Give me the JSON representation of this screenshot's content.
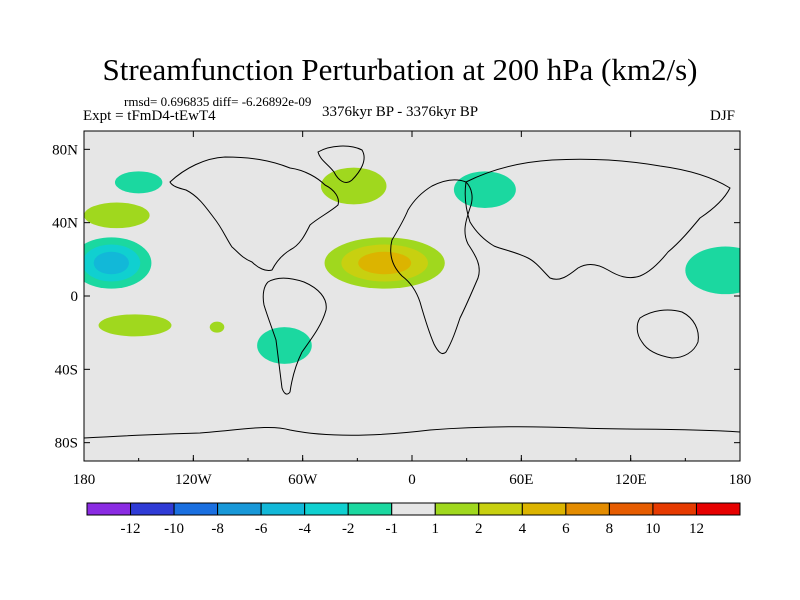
{
  "chart_data": {
    "type": "contour-map",
    "title": "Streamfunction Perturbation at 200 hPa (km2/s)",
    "stats": "rmsd= 0.696835  diff= -6.26892e-09",
    "left_label": "Expt = tFmD4-tEwT4",
    "center_label": "3376kyr BP - 3376kyr BP",
    "right_label": "DJF",
    "xlim": [
      -180,
      180
    ],
    "ylim": [
      -90,
      90
    ],
    "x_ticks": [
      {
        "value": -180,
        "label": "180"
      },
      {
        "value": -120,
        "label": "120W"
      },
      {
        "value": -60,
        "label": "60W"
      },
      {
        "value": 0,
        "label": "0"
      },
      {
        "value": 60,
        "label": "60E"
      },
      {
        "value": 120,
        "label": "120E"
      },
      {
        "value": 180,
        "label": "180"
      }
    ],
    "y_ticks": [
      {
        "value": 80,
        "label": "80N"
      },
      {
        "value": 40,
        "label": "40N"
      },
      {
        "value": 0,
        "label": "0"
      },
      {
        "value": -40,
        "label": "40S"
      },
      {
        "value": -80,
        "label": "80S"
      }
    ],
    "colorbar": {
      "colors": [
        "#8a2be2",
        "#2f3bd6",
        "#1a6fe0",
        "#1898d8",
        "#12b8d8",
        "#10d0d0",
        "#1bd8a0",
        "#e6e6e6",
        "#a0d81e",
        "#c8d010",
        "#dcb400",
        "#e48c00",
        "#e65c00",
        "#e63a00",
        "#e60000"
      ],
      "labels": [
        "-12",
        "-10",
        "-8",
        "-6",
        "-4",
        "-2",
        "-1",
        "1",
        "2",
        "4",
        "6",
        "8",
        "10",
        "12"
      ]
    },
    "anomalies": [
      {
        "name": "alaska-negative",
        "lon": -150,
        "lat": 62,
        "rx": 13,
        "ry": 6,
        "level": "-1..-2"
      },
      {
        "name": "north-pacific-positive",
        "lon": -162,
        "lat": 44,
        "rx": 18,
        "ry": 7,
        "level": "1..2"
      },
      {
        "name": "central-pacific-negative",
        "lon": -165,
        "lat": 18,
        "rx": 22,
        "ry": 14,
        "level": "-1..-4"
      },
      {
        "name": "north-atlantic-positive",
        "lon": -32,
        "lat": 60,
        "rx": 18,
        "ry": 10,
        "level": "1..2"
      },
      {
        "name": "tropical-atlantic-positive",
        "lon": -15,
        "lat": 18,
        "rx": 33,
        "ry": 14,
        "level": "1..4"
      },
      {
        "name": "eurasia-negative",
        "lon": 40,
        "lat": 58,
        "rx": 17,
        "ry": 10,
        "level": "-1..-2"
      },
      {
        "name": "west-pacific-negative",
        "lon": 172,
        "lat": 14,
        "rx": 22,
        "ry": 13,
        "level": "-1..-2"
      },
      {
        "name": "south-pacific-positive",
        "lon": -152,
        "lat": -16,
        "rx": 20,
        "ry": 6,
        "level": "1..2"
      },
      {
        "name": "south-pacific-small-positive",
        "lon": -107,
        "lat": -17,
        "rx": 4,
        "ry": 3,
        "level": "1..2"
      },
      {
        "name": "south-america-negative",
        "lon": -70,
        "lat": -27,
        "rx": 15,
        "ry": 10,
        "level": "-1..-2"
      }
    ]
  }
}
